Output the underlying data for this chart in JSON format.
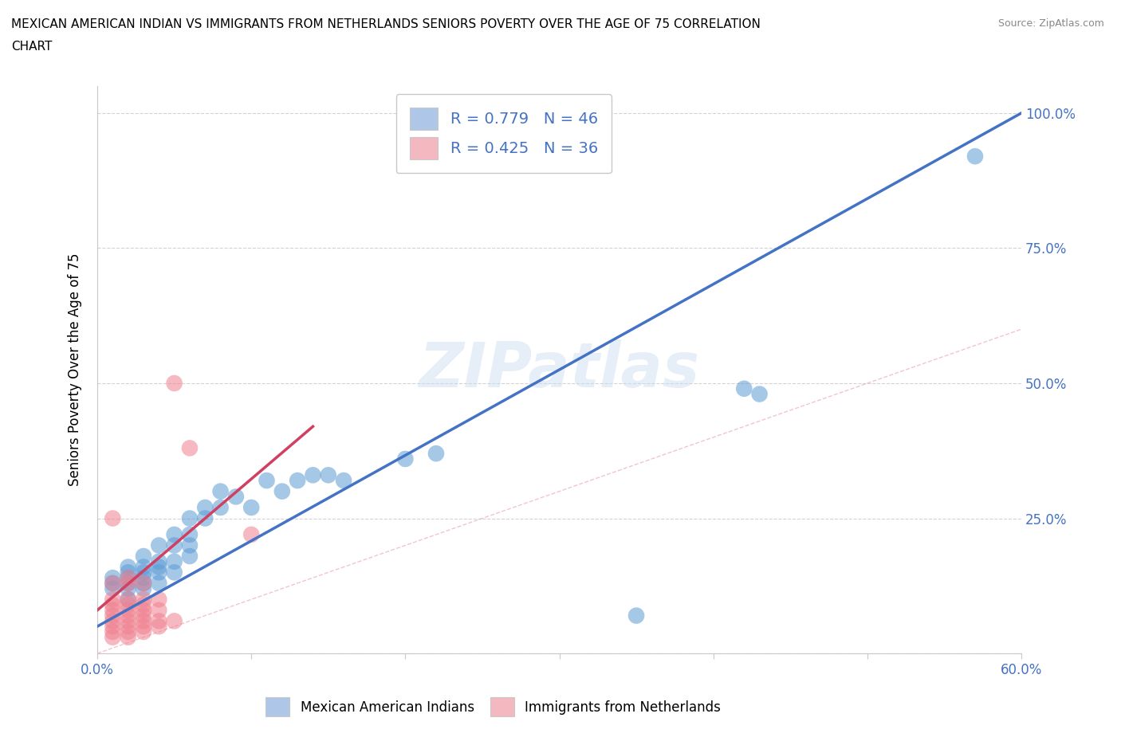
{
  "title_line1": "MEXICAN AMERICAN INDIAN VS IMMIGRANTS FROM NETHERLANDS SENIORS POVERTY OVER THE AGE OF 75 CORRELATION",
  "title_line2": "CHART",
  "source": "Source: ZipAtlas.com",
  "ylabel": "Seniors Poverty Over the Age of 75",
  "x_min": 0.0,
  "x_max": 0.6,
  "y_min": 0.0,
  "y_max": 1.05,
  "x_ticks": [
    0.0,
    0.1,
    0.2,
    0.3,
    0.4,
    0.5,
    0.6
  ],
  "x_tick_labels": [
    "0.0%",
    "",
    "",
    "",
    "",
    "",
    "60.0%"
  ],
  "y_ticks": [
    0.0,
    0.25,
    0.5,
    0.75,
    1.0
  ],
  "y_tick_labels": [
    "",
    "25.0%",
    "50.0%",
    "75.0%",
    "100.0%"
  ],
  "legend1_label": "R = 0.779   N = 46",
  "legend2_label": "R = 0.425   N = 36",
  "legend1_color": "#aec6e8",
  "legend2_color": "#f4b8c1",
  "watermark": "ZIPatlas",
  "blue_color": "#5b9bd5",
  "pink_color": "#f08090",
  "regression_blue_color": "#4472c4",
  "regression_pink_color": "#d04060",
  "blue_line_x0": 0.0,
  "blue_line_y0": 0.05,
  "blue_line_x1": 0.6,
  "blue_line_y1": 1.0,
  "pink_line_x0": 0.0,
  "pink_line_y0": 0.08,
  "pink_line_x1": 0.14,
  "pink_line_y1": 0.42,
  "scatter_blue": [
    [
      0.01,
      0.12
    ],
    [
      0.01,
      0.13
    ],
    [
      0.01,
      0.14
    ],
    [
      0.02,
      0.1
    ],
    [
      0.02,
      0.12
    ],
    [
      0.02,
      0.13
    ],
    [
      0.02,
      0.14
    ],
    [
      0.02,
      0.15
    ],
    [
      0.02,
      0.16
    ],
    [
      0.03,
      0.12
    ],
    [
      0.03,
      0.13
    ],
    [
      0.03,
      0.14
    ],
    [
      0.03,
      0.15
    ],
    [
      0.03,
      0.16
    ],
    [
      0.03,
      0.18
    ],
    [
      0.04,
      0.13
    ],
    [
      0.04,
      0.15
    ],
    [
      0.04,
      0.16
    ],
    [
      0.04,
      0.17
    ],
    [
      0.04,
      0.2
    ],
    [
      0.05,
      0.15
    ],
    [
      0.05,
      0.17
    ],
    [
      0.05,
      0.2
    ],
    [
      0.05,
      0.22
    ],
    [
      0.06,
      0.18
    ],
    [
      0.06,
      0.2
    ],
    [
      0.06,
      0.22
    ],
    [
      0.06,
      0.25
    ],
    [
      0.07,
      0.25
    ],
    [
      0.07,
      0.27
    ],
    [
      0.08,
      0.27
    ],
    [
      0.08,
      0.3
    ],
    [
      0.09,
      0.29
    ],
    [
      0.1,
      0.27
    ],
    [
      0.11,
      0.32
    ],
    [
      0.12,
      0.3
    ],
    [
      0.13,
      0.32
    ],
    [
      0.14,
      0.33
    ],
    [
      0.15,
      0.33
    ],
    [
      0.16,
      0.32
    ],
    [
      0.2,
      0.36
    ],
    [
      0.22,
      0.37
    ],
    [
      0.35,
      0.07
    ],
    [
      0.42,
      0.49
    ],
    [
      0.43,
      0.48
    ],
    [
      0.57,
      0.92
    ]
  ],
  "scatter_pink": [
    [
      0.01,
      0.03
    ],
    [
      0.01,
      0.04
    ],
    [
      0.01,
      0.05
    ],
    [
      0.01,
      0.06
    ],
    [
      0.01,
      0.07
    ],
    [
      0.01,
      0.08
    ],
    [
      0.01,
      0.09
    ],
    [
      0.01,
      0.1
    ],
    [
      0.01,
      0.13
    ],
    [
      0.01,
      0.25
    ],
    [
      0.02,
      0.03
    ],
    [
      0.02,
      0.04
    ],
    [
      0.02,
      0.05
    ],
    [
      0.02,
      0.06
    ],
    [
      0.02,
      0.07
    ],
    [
      0.02,
      0.08
    ],
    [
      0.02,
      0.09
    ],
    [
      0.02,
      0.1
    ],
    [
      0.02,
      0.13
    ],
    [
      0.02,
      0.14
    ],
    [
      0.03,
      0.04
    ],
    [
      0.03,
      0.05
    ],
    [
      0.03,
      0.06
    ],
    [
      0.03,
      0.07
    ],
    [
      0.03,
      0.08
    ],
    [
      0.03,
      0.09
    ],
    [
      0.03,
      0.1
    ],
    [
      0.03,
      0.13
    ],
    [
      0.04,
      0.05
    ],
    [
      0.04,
      0.06
    ],
    [
      0.04,
      0.08
    ],
    [
      0.04,
      0.1
    ],
    [
      0.05,
      0.06
    ],
    [
      0.05,
      0.5
    ],
    [
      0.06,
      0.38
    ],
    [
      0.1,
      0.22
    ]
  ]
}
